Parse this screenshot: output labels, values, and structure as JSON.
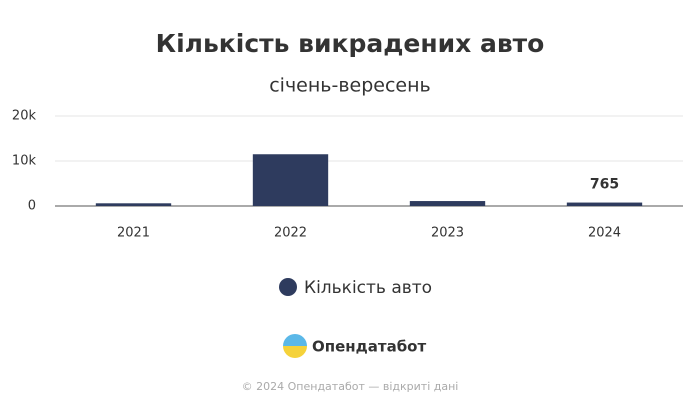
{
  "chart_data": {
    "type": "bar",
    "title": "Кількість викрадених авто",
    "subtitle": "січень-вересень",
    "categories": [
      "2021",
      "2022",
      "2023",
      "2024"
    ],
    "series": [
      {
        "name": "Кількість авто",
        "color": "#2e3b5e",
        "values": [
          600,
          11500,
          1100,
          765
        ]
      }
    ],
    "value_labels": [
      null,
      null,
      null,
      "765"
    ],
    "ylim": [
      0,
      20000
    ],
    "yticks": [
      0,
      {
        "value": 10000,
        "label": "10k"
      },
      {
        "value": 20000,
        "label": "20k"
      }
    ],
    "grid": true,
    "legend": "bottom"
  },
  "logo": "Опендатабот",
  "footer": "© 2024 Опендатабот — відкриті дані"
}
